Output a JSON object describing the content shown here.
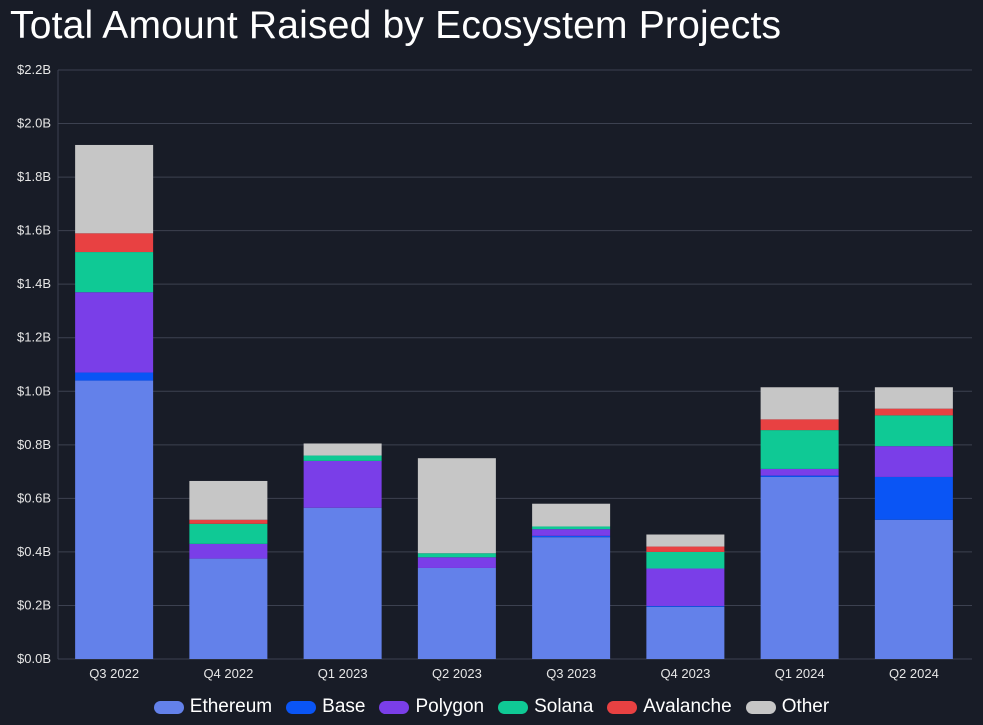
{
  "chart_data": {
    "type": "bar",
    "stacked": true,
    "title": "Total Amount Raised by Ecosystem Projects",
    "categories": [
      "Q3 2022",
      "Q4 2022",
      "Q1 2023",
      "Q2 2023",
      "Q3 2023",
      "Q4 2023",
      "Q1 2024",
      "Q2 2024"
    ],
    "ylim": [
      0,
      2.2
    ],
    "yticks": [
      "$0.0B",
      "$0.2B",
      "$0.4B",
      "$0.6B",
      "$0.8B",
      "$1.0B",
      "$1.2B",
      "$1.4B",
      "$1.6B",
      "$1.8B",
      "$2.0B",
      "$2.2B"
    ],
    "grid": true,
    "legend_position": "bottom",
    "series": [
      {
        "name": "Ethereum",
        "color": "#6381ea",
        "values": [
          1.04,
          0.375,
          0.565,
          0.34,
          0.455,
          0.195,
          0.68,
          0.52
        ]
      },
      {
        "name": "Base",
        "color": "#0a55f5",
        "values": [
          0.03,
          0.0,
          0.0,
          0.0,
          0.005,
          0.003,
          0.005,
          0.16
        ]
      },
      {
        "name": "Polygon",
        "color": "#7a3ee8",
        "values": [
          0.3,
          0.055,
          0.175,
          0.04,
          0.025,
          0.14,
          0.025,
          0.115
        ]
      },
      {
        "name": "Solana",
        "color": "#0fc995",
        "values": [
          0.15,
          0.075,
          0.02,
          0.015,
          0.01,
          0.062,
          0.145,
          0.115
        ]
      },
      {
        "name": "Avalanche",
        "color": "#e84142",
        "values": [
          0.07,
          0.015,
          0.0,
          0.0,
          0.0,
          0.02,
          0.04,
          0.025
        ]
      },
      {
        "name": "Other",
        "color": "#c6c6c6",
        "values": [
          0.33,
          0.145,
          0.045,
          0.355,
          0.085,
          0.045,
          0.12,
          0.08
        ]
      }
    ]
  }
}
